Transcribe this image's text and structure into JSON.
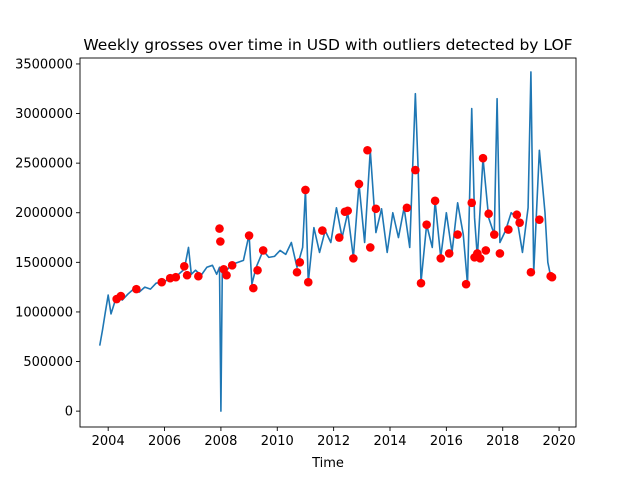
{
  "chart_data": {
    "type": "line",
    "title": "Weekly grosses over time in USD with outliers detected by LOF",
    "xlabel": "Time",
    "ylabel": "",
    "xlim": [
      2003.0,
      2020.6
    ],
    "ylim": [
      -160000,
      3560000
    ],
    "x_ticks": [
      2004,
      2006,
      2008,
      2010,
      2012,
      2014,
      2016,
      2018,
      2020
    ],
    "x_tick_labels": [
      "2004",
      "2006",
      "2008",
      "2010",
      "2012",
      "2014",
      "2016",
      "2018",
      "2020"
    ],
    "y_ticks": [
      0,
      500000,
      1000000,
      1500000,
      2000000,
      2500000,
      3000000,
      3500000
    ],
    "y_tick_labels": [
      "0",
      "500000",
      "1000000",
      "1500000",
      "2000000",
      "2500000",
      "3000000",
      "3500000"
    ],
    "grid": false,
    "legend": "none",
    "series": [
      {
        "kind": "line",
        "color": "#1f77b4",
        "points": [
          [
            2003.7,
            660000
          ],
          [
            2003.8,
            820000
          ],
          [
            2003.9,
            1000000
          ],
          [
            2004.0,
            1170000
          ],
          [
            2004.1,
            980000
          ],
          [
            2004.3,
            1160000
          ],
          [
            2004.5,
            1120000
          ],
          [
            2004.7,
            1180000
          ],
          [
            2004.9,
            1230000
          ],
          [
            2005.1,
            1200000
          ],
          [
            2005.3,
            1250000
          ],
          [
            2005.5,
            1230000
          ],
          [
            2005.7,
            1290000
          ],
          [
            2005.9,
            1300000
          ],
          [
            2006.1,
            1320000
          ],
          [
            2006.3,
            1360000
          ],
          [
            2006.5,
            1380000
          ],
          [
            2006.7,
            1430000
          ],
          [
            2006.85,
            1650000
          ],
          [
            2006.95,
            1380000
          ],
          [
            2007.1,
            1420000
          ],
          [
            2007.3,
            1370000
          ],
          [
            2007.5,
            1450000
          ],
          [
            2007.7,
            1470000
          ],
          [
            2007.85,
            1380000
          ],
          [
            2007.95,
            1450000
          ],
          [
            2008.0,
            0
          ],
          [
            2008.05,
            1450000
          ],
          [
            2008.2,
            1420000
          ],
          [
            2008.4,
            1480000
          ],
          [
            2008.6,
            1500000
          ],
          [
            2008.8,
            1520000
          ],
          [
            2009.0,
            1780000
          ],
          [
            2009.1,
            1280000
          ],
          [
            2009.25,
            1450000
          ],
          [
            2009.5,
            1620000
          ],
          [
            2009.7,
            1550000
          ],
          [
            2009.9,
            1560000
          ],
          [
            2010.1,
            1620000
          ],
          [
            2010.3,
            1580000
          ],
          [
            2010.5,
            1700000
          ],
          [
            2010.7,
            1450000
          ],
          [
            2010.9,
            1650000
          ],
          [
            2011.0,
            2230000
          ],
          [
            2011.1,
            1300000
          ],
          [
            2011.3,
            1850000
          ],
          [
            2011.5,
            1600000
          ],
          [
            2011.7,
            1820000
          ],
          [
            2011.9,
            1700000
          ],
          [
            2012.1,
            2050000
          ],
          [
            2012.3,
            1750000
          ],
          [
            2012.5,
            2000000
          ],
          [
            2012.7,
            1550000
          ],
          [
            2012.9,
            2290000
          ],
          [
            2013.1,
            1700000
          ],
          [
            2013.3,
            2630000
          ],
          [
            2013.5,
            1800000
          ],
          [
            2013.7,
            2040000
          ],
          [
            2013.9,
            1600000
          ],
          [
            2014.1,
            2000000
          ],
          [
            2014.3,
            1750000
          ],
          [
            2014.5,
            2050000
          ],
          [
            2014.7,
            1650000
          ],
          [
            2014.9,
            3200000
          ],
          [
            2015.0,
            2430000
          ],
          [
            2015.1,
            1300000
          ],
          [
            2015.3,
            1880000
          ],
          [
            2015.5,
            1650000
          ],
          [
            2015.6,
            2120000
          ],
          [
            2015.8,
            1550000
          ],
          [
            2016.0,
            2000000
          ],
          [
            2016.2,
            1600000
          ],
          [
            2016.4,
            2100000
          ],
          [
            2016.6,
            1780000
          ],
          [
            2016.75,
            1280000
          ],
          [
            2016.9,
            3050000
          ],
          [
            2017.0,
            1950000
          ],
          [
            2017.1,
            1550000
          ],
          [
            2017.3,
            2550000
          ],
          [
            2017.5,
            1950000
          ],
          [
            2017.7,
            1780000
          ],
          [
            2017.8,
            3150000
          ],
          [
            2017.9,
            1700000
          ],
          [
            2018.1,
            1820000
          ],
          [
            2018.3,
            2000000
          ],
          [
            2018.5,
            1950000
          ],
          [
            2018.7,
            1600000
          ],
          [
            2018.9,
            2050000
          ],
          [
            2019.0,
            3420000
          ],
          [
            2019.1,
            1400000
          ],
          [
            2019.3,
            2630000
          ],
          [
            2019.5,
            2000000
          ],
          [
            2019.6,
            1500000
          ],
          [
            2019.7,
            1360000
          ]
        ]
      },
      {
        "kind": "scatter",
        "name": "outliers",
        "color": "#ff0000",
        "points": [
          [
            2004.3,
            1130000
          ],
          [
            2004.45,
            1160000
          ],
          [
            2005.0,
            1230000
          ],
          [
            2005.9,
            1300000
          ],
          [
            2006.2,
            1340000
          ],
          [
            2006.4,
            1350000
          ],
          [
            2006.7,
            1460000
          ],
          [
            2006.8,
            1370000
          ],
          [
            2007.2,
            1360000
          ],
          [
            2007.95,
            1840000
          ],
          [
            2007.98,
            1710000
          ],
          [
            2008.1,
            1430000
          ],
          [
            2008.2,
            1370000
          ],
          [
            2008.4,
            1470000
          ],
          [
            2009.0,
            1770000
          ],
          [
            2009.15,
            1240000
          ],
          [
            2009.3,
            1420000
          ],
          [
            2009.5,
            1620000
          ],
          [
            2010.7,
            1400000
          ],
          [
            2010.8,
            1500000
          ],
          [
            2011.0,
            2230000
          ],
          [
            2011.1,
            1300000
          ],
          [
            2011.6,
            1820000
          ],
          [
            2012.2,
            1750000
          ],
          [
            2012.4,
            2010000
          ],
          [
            2012.5,
            2020000
          ],
          [
            2012.7,
            1540000
          ],
          [
            2012.9,
            2290000
          ],
          [
            2013.2,
            2630000
          ],
          [
            2013.3,
            1650000
          ],
          [
            2013.5,
            2040000
          ],
          [
            2014.6,
            2050000
          ],
          [
            2014.9,
            2430000
          ],
          [
            2015.1,
            1290000
          ],
          [
            2015.3,
            1880000
          ],
          [
            2015.6,
            2120000
          ],
          [
            2015.8,
            1540000
          ],
          [
            2016.1,
            1590000
          ],
          [
            2016.4,
            1780000
          ],
          [
            2016.7,
            1280000
          ],
          [
            2016.9,
            2100000
          ],
          [
            2017.0,
            1550000
          ],
          [
            2017.1,
            1590000
          ],
          [
            2017.2,
            1540000
          ],
          [
            2017.3,
            2550000
          ],
          [
            2017.4,
            1620000
          ],
          [
            2017.5,
            1990000
          ],
          [
            2017.7,
            1780000
          ],
          [
            2017.9,
            1590000
          ],
          [
            2018.2,
            1830000
          ],
          [
            2018.5,
            1980000
          ],
          [
            2018.6,
            1900000
          ],
          [
            2019.0,
            1400000
          ],
          [
            2019.3,
            1930000
          ],
          [
            2019.7,
            1360000
          ],
          [
            2019.75,
            1350000
          ]
        ]
      }
    ]
  }
}
